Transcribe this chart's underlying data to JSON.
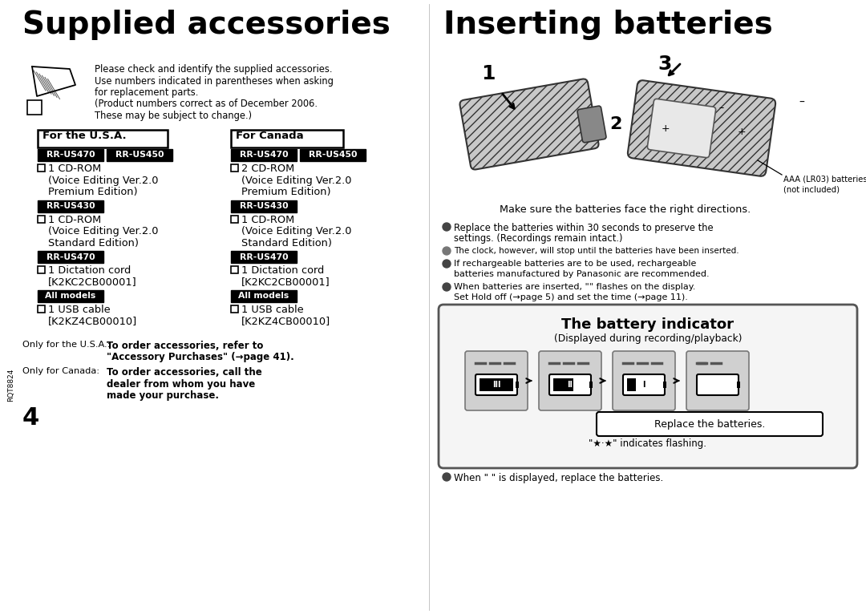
{
  "bg": "#ffffff",
  "title_left": "Supplied accessories",
  "title_right": "Inserting batteries",
  "intro_lines": [
    "Please check and identify the supplied accessories.",
    "Use numbers indicated in parentheses when asking",
    "for replacement parts.",
    "(Product numbers correct as of December 2006.",
    "These may be subject to change.)"
  ],
  "usa_header": "For the U.S.A.",
  "canada_header": "For Canada",
  "battery_caption": "Make sure the batteries face the right directions.",
  "bp1a": "Replace the batteries within 30 seconds to preserve the",
  "bp1b": "settings. (Recordings remain intact.)",
  "bp2": "The clock, however, will stop until the batteries have been inserted.",
  "bp3a": "If rechargeable batteries are to be used, rechargeable",
  "bp3b": "batteries manufactured by Panasonic are recommended.",
  "bp4a": "When batteries are inserted, \"​​​​\" flashes on the display.",
  "bp4b": "Set Hold off (→page 5) and set the time (→page 11).",
  "bi_title": "The battery indicator",
  "bi_sub": "(Displayed during recording/playback)",
  "bi_replace": "Replace the batteries.",
  "bi_flash": "\"★·★\" indicates flashing.",
  "last_bullet": "When \"​​ ​\" is displayed, replace the batteries.",
  "usa_note1": "Only for the U.S.A.:",
  "usa_note2": "To order accessories, refer to",
  "usa_note3": "\"Accessory Purchases\" (→page 41).",
  "can_note1": "Only for Canada:",
  "can_note2": "To order accessories, call the",
  "can_note3": "dealer from whom you have",
  "can_note4": "made your purchase.",
  "page": "4",
  "rqt": "RQT8824"
}
